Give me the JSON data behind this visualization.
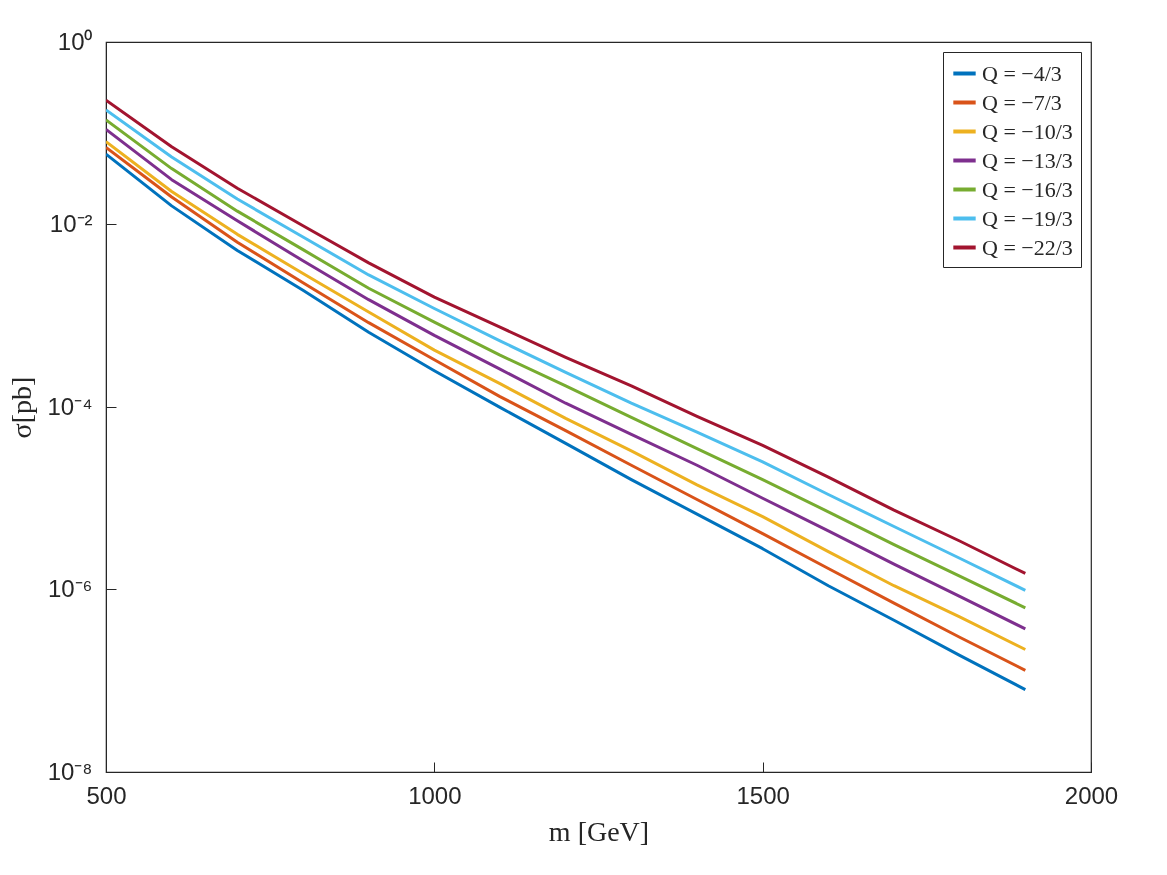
{
  "chart_data": {
    "type": "line",
    "xlabel": "m [GeV]",
    "ylabel": "σ[pb]",
    "log": "y",
    "grid": false,
    "legend": "top right",
    "marker": "none",
    "line_style": "solid",
    "x": [
      500,
      600,
      700,
      800,
      900,
      1000,
      1100,
      1200,
      1300,
      1400,
      1500,
      1600,
      1700,
      1800,
      1900
    ],
    "xlim": [
      500,
      2000
    ],
    "xticks": [
      500,
      1000,
      1500,
      2000
    ],
    "ylim": [
      1e-08,
      1
    ],
    "yticks": [
      {
        "value": 1e-08,
        "label": "10⁻⁸"
      },
      {
        "value": 1e-06,
        "label": "10⁻⁶"
      },
      {
        "value": 0.0001,
        "label": "10⁻⁴"
      },
      {
        "value": 0.01,
        "label": "10⁻²"
      },
      {
        "value": 1,
        "label": "10⁰"
      }
    ],
    "series": [
      {
        "name": "Q = −4/3",
        "color": "#0072bd",
        "values": [
          0.059,
          0.016,
          0.0052,
          0.0019,
          0.00066,
          0.00025,
          9.9e-05,
          4e-05,
          1.6e-05,
          6.7e-06,
          2.8e-06,
          1.1e-06,
          4.6e-07,
          1.9e-07,
          8e-08
        ]
      },
      {
        "name": "Q = −7/3",
        "color": "#d95319",
        "values": [
          0.07,
          0.02,
          0.0064,
          0.0023,
          0.00084,
          0.00033,
          0.00013,
          5.5e-05,
          2.3e-05,
          9.7e-06,
          4.1e-06,
          1.7e-06,
          7.1e-07,
          3e-07,
          1.3e-07
        ]
      },
      {
        "name": "Q = −10/3",
        "color": "#edb120",
        "values": [
          0.081,
          0.023,
          0.0078,
          0.0029,
          0.0011,
          0.00042,
          0.00018,
          7.5e-05,
          3.3e-05,
          1.4e-05,
          6.3e-06,
          2.6e-06,
          1.1e-06,
          5e-07,
          2.2e-07
        ]
      },
      {
        "name": "Q = −13/3",
        "color": "#7e2f8e",
        "values": [
          0.11,
          0.031,
          0.011,
          0.004,
          0.0015,
          0.00061,
          0.00026,
          0.00011,
          5e-05,
          2.3e-05,
          1e-05,
          4.4e-06,
          1.9e-06,
          8.4e-07,
          3.7e-07
        ]
      },
      {
        "name": "Q = −16/3",
        "color": "#77ac30",
        "values": [
          0.14,
          0.041,
          0.014,
          0.0053,
          0.002,
          0.00085,
          0.00037,
          0.00017,
          7.7e-05,
          3.5e-05,
          1.6e-05,
          7.1e-06,
          3.1e-06,
          1.4e-06,
          6.3e-07
        ]
      },
      {
        "name": "Q = −19/3",
        "color": "#4dbeee",
        "values": [
          0.18,
          0.055,
          0.019,
          0.0073,
          0.0028,
          0.0012,
          0.00053,
          0.00024,
          0.00011,
          5.3e-05,
          2.5e-05,
          1.1e-05,
          4.9e-06,
          2.2e-06,
          9.8e-07
        ]
      },
      {
        "name": "Q = −22/3",
        "color": "#a2142f",
        "values": [
          0.23,
          0.071,
          0.025,
          0.0097,
          0.0038,
          0.0016,
          0.00075,
          0.00035,
          0.00017,
          7.9e-05,
          3.8e-05,
          1.7e-05,
          7.4e-06,
          3.4e-06,
          1.5e-06
        ]
      }
    ]
  }
}
